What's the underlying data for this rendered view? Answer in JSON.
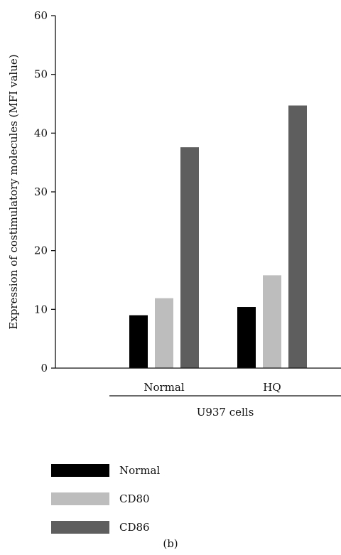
{
  "chart_data": {
    "type": "bar",
    "ylabel": "Expression of costimulatory molecules (MFI value)",
    "xlabel": "U937 cells",
    "categories": [
      "Normal",
      "HQ"
    ],
    "series": [
      {
        "name": "Normal",
        "color": "#000000",
        "values": [
          9,
          10.4
        ]
      },
      {
        "name": "CD80",
        "color": "#bdbdbd",
        "values": [
          11.9,
          15.8
        ]
      },
      {
        "name": "CD86",
        "color": "#5e5e5e",
        "values": [
          37.6,
          44.7
        ]
      }
    ],
    "ylim": [
      0,
      60
    ],
    "yticks": [
      0,
      10,
      20,
      30,
      40,
      50,
      60
    ],
    "grid": false,
    "legend_position": "bottom-left"
  },
  "panel_label": "(b)"
}
